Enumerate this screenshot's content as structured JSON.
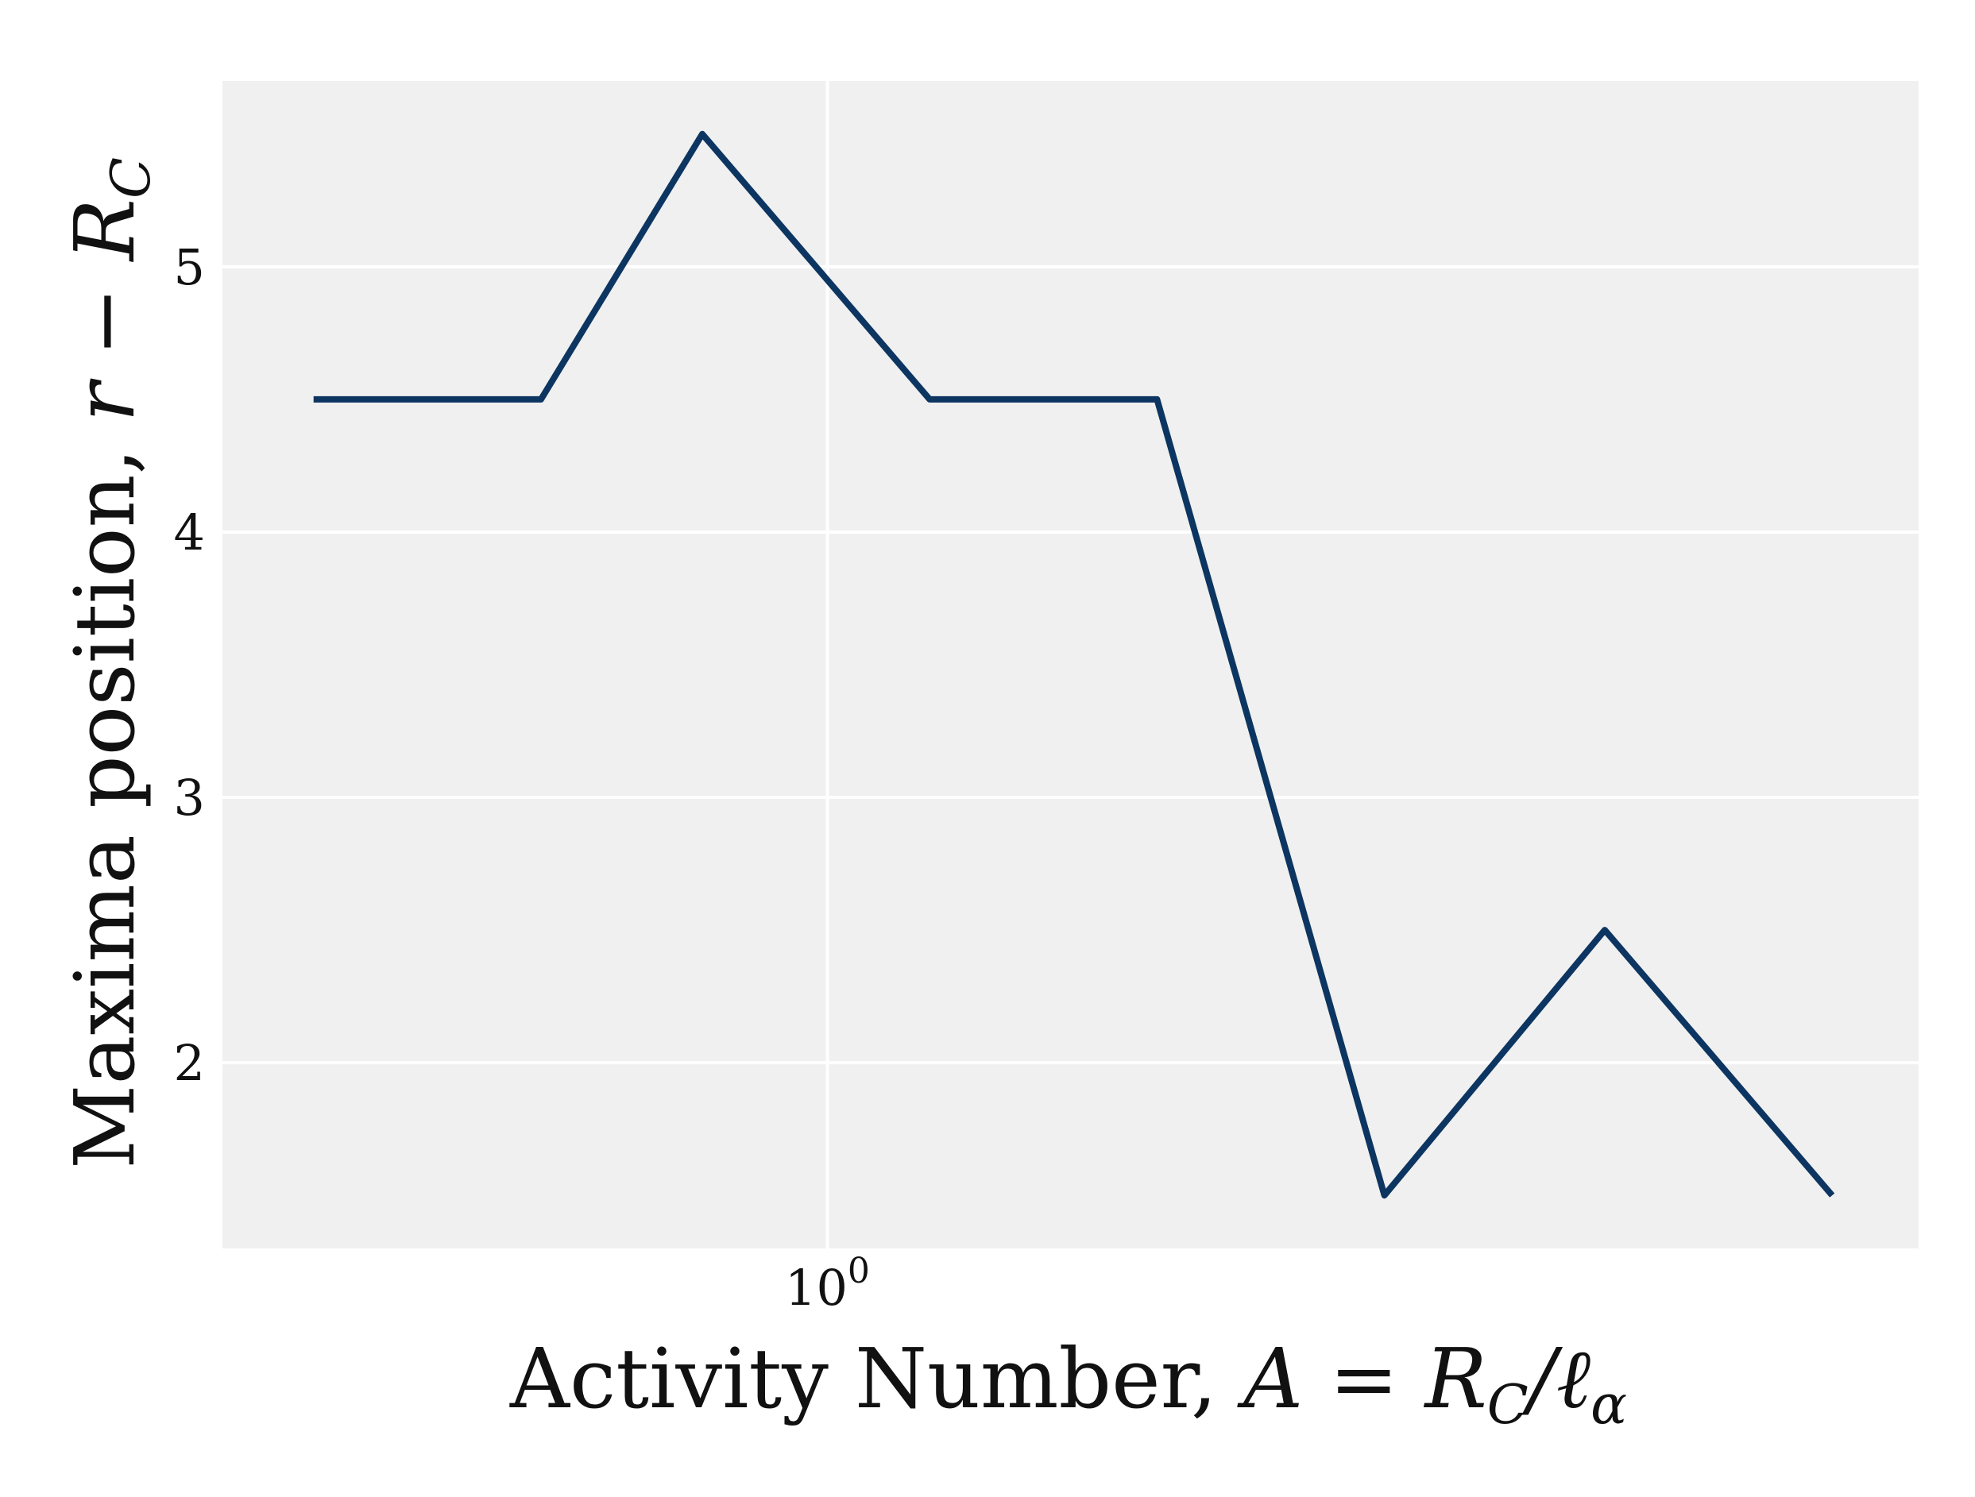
{
  "chart_data": {
    "type": "line",
    "xscale": "log",
    "x": [
      0.4,
      0.6,
      0.8,
      1.2,
      1.8,
      2.7,
      4.0,
      6.0
    ],
    "series": [
      {
        "values": [
          4.5,
          4.5,
          5.5,
          4.5,
          4.5,
          1.5,
          2.5,
          1.5
        ]
      }
    ],
    "xlim": [
      0.34,
      7.0
    ],
    "ylim": [
      1.3,
      5.7
    ],
    "x_ticks": [
      {
        "value": 1.0,
        "label": "10",
        "exponent": "0"
      }
    ],
    "y_ticks": [
      {
        "value": 2,
        "label": "2"
      },
      {
        "value": 3,
        "label": "3"
      },
      {
        "value": 4,
        "label": "4"
      },
      {
        "value": 5,
        "label": "5"
      }
    ],
    "xlabel": {
      "text": "Activity Number, ",
      "math": "A = R",
      "sub1": "C",
      "math2": "/ℓ",
      "sub2": "α"
    },
    "ylabel": {
      "text": "Maxima position, ",
      "math": "r − R",
      "sub": "C"
    },
    "grid": true,
    "colors": {
      "line": "#0d3561",
      "panel": "#f0f0f0",
      "grid": "#ffffff"
    }
  }
}
